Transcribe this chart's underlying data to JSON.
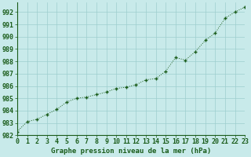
{
  "x": [
    0,
    1,
    2,
    3,
    4,
    5,
    6,
    7,
    8,
    9,
    10,
    11,
    12,
    13,
    14,
    15,
    16,
    17,
    18,
    19,
    20,
    21,
    22,
    23
  ],
  "y": [
    982.3,
    983.1,
    983.3,
    983.7,
    984.1,
    984.7,
    985.0,
    985.1,
    985.3,
    985.5,
    985.8,
    985.9,
    986.1,
    986.5,
    986.6,
    987.2,
    988.3,
    988.1,
    988.8,
    989.7,
    990.3,
    991.5,
    992.0,
    992.4
  ],
  "line_color": "#1a5c1a",
  "marker_color": "#1a5c1a",
  "bg_color": "#c8eaea",
  "grid_color": "#9ecece",
  "xlabel": "Graphe pression niveau de la mer (hPa)",
  "xlabel_fontsize": 6.5,
  "ylabel_ticks": [
    982,
    983,
    984,
    985,
    986,
    987,
    988,
    989,
    990,
    991,
    992
  ],
  "xlim": [
    0,
    23
  ],
  "ylim": [
    982,
    992.8
  ],
  "title_color": "#1a5c1a",
  "tick_fontsize": 6.0
}
